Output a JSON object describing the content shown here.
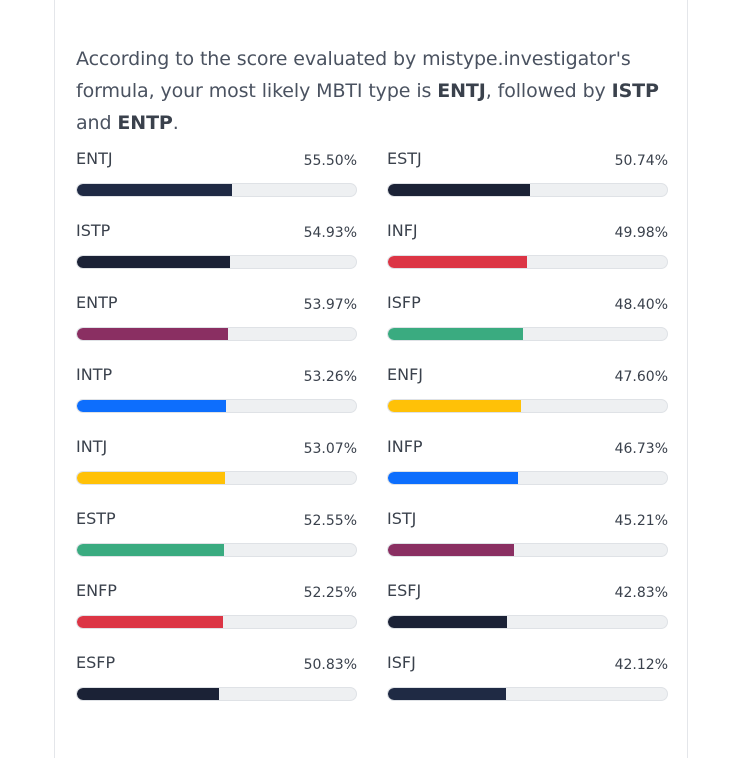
{
  "intro": {
    "text_1": "According to the score evaluated by mistype.investigator's formula, your most likely MBTI type is ",
    "type_1": "ENTJ",
    "text_2": ", followed by ",
    "type_2": "ISTP",
    "text_3": " and ",
    "type_3": "ENTP",
    "text_4": "."
  },
  "colors": {
    "navy": "#1f2a44",
    "crimson": "#dc3545",
    "plum": "#8a2f62",
    "blue": "#0d6efd",
    "yellow": "#ffc107",
    "green": "#3aab80",
    "track": "#eef0f2"
  },
  "scores": {
    "left": [
      {
        "type": "ENTJ",
        "pct_label": "55.50%",
        "value": 55.5,
        "color": "#1f2a44"
      },
      {
        "type": "ISTP",
        "pct_label": "54.93%",
        "value": 54.93,
        "color": "#1b2236"
      },
      {
        "type": "ENTP",
        "pct_label": "53.97%",
        "value": 53.97,
        "color": "#8a2f62"
      },
      {
        "type": "INTP",
        "pct_label": "53.26%",
        "value": 53.26,
        "color": "#0d6efd"
      },
      {
        "type": "INTJ",
        "pct_label": "53.07%",
        "value": 53.07,
        "color": "#ffc107"
      },
      {
        "type": "ESTP",
        "pct_label": "52.55%",
        "value": 52.55,
        "color": "#3aab80"
      },
      {
        "type": "ENFP",
        "pct_label": "52.25%",
        "value": 52.25,
        "color": "#dc3545"
      },
      {
        "type": "ESFP",
        "pct_label": "50.83%",
        "value": 50.83,
        "color": "#1b2236"
      }
    ],
    "right": [
      {
        "type": "ESTJ",
        "pct_label": "50.74%",
        "value": 50.74,
        "color": "#1b2236"
      },
      {
        "type": "INFJ",
        "pct_label": "49.98%",
        "value": 49.98,
        "color": "#dc3545"
      },
      {
        "type": "ISFP",
        "pct_label": "48.40%",
        "value": 48.4,
        "color": "#3aab80"
      },
      {
        "type": "ENFJ",
        "pct_label": "47.60%",
        "value": 47.6,
        "color": "#ffc107"
      },
      {
        "type": "INFP",
        "pct_label": "46.73%",
        "value": 46.73,
        "color": "#0d6efd"
      },
      {
        "type": "ISTJ",
        "pct_label": "45.21%",
        "value": 45.21,
        "color": "#8a2f62"
      },
      {
        "type": "ESFJ",
        "pct_label": "42.83%",
        "value": 42.83,
        "color": "#1b2236"
      },
      {
        "type": "ISFJ",
        "pct_label": "42.12%",
        "value": 42.12,
        "color": "#1f2a44"
      }
    ]
  }
}
